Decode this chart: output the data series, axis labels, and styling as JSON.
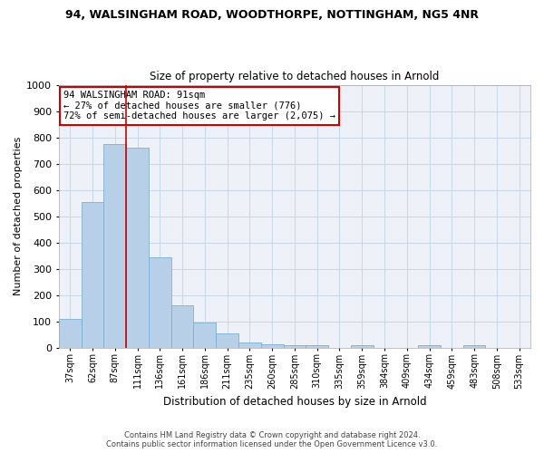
{
  "title_line1": "94, WALSINGHAM ROAD, WOODTHORPE, NOTTINGHAM, NG5 4NR",
  "title_line2": "Size of property relative to detached houses in Arnold",
  "xlabel": "Distribution of detached houses by size in Arnold",
  "ylabel": "Number of detached properties",
  "categories": [
    "37sqm",
    "62sqm",
    "87sqm",
    "111sqm",
    "136sqm",
    "161sqm",
    "186sqm",
    "211sqm",
    "235sqm",
    "260sqm",
    "285sqm",
    "310sqm",
    "335sqm",
    "359sqm",
    "384sqm",
    "409sqm",
    "434sqm",
    "459sqm",
    "483sqm",
    "508sqm",
    "533sqm"
  ],
  "values": [
    110,
    555,
    775,
    760,
    345,
    160,
    95,
    55,
    20,
    13,
    10,
    10,
    0,
    10,
    0,
    0,
    10,
    0,
    10,
    0,
    0
  ],
  "bar_color": "#b8cfe8",
  "bar_edgecolor": "#7aafd4",
  "annotation_text_line1": "94 WALSINGHAM ROAD: 91sqm",
  "annotation_text_line2": "← 27% of detached houses are smaller (776)",
  "annotation_text_line3": "72% of semi-detached houses are larger (2,075) →",
  "annotation_box_facecolor": "#ffffff",
  "annotation_box_edgecolor": "#cc0000",
  "vline_color": "#cc0000",
  "vline_x": 2.5,
  "ylim": [
    0,
    1000
  ],
  "yticks": [
    0,
    100,
    200,
    300,
    400,
    500,
    600,
    700,
    800,
    900,
    1000
  ],
  "grid_color": "#c8d8e8",
  "bg_color": "#eef2f8",
  "footer_line1": "Contains HM Land Registry data © Crown copyright and database right 2024.",
  "footer_line2": "Contains public sector information licensed under the Open Government Licence v3.0."
}
